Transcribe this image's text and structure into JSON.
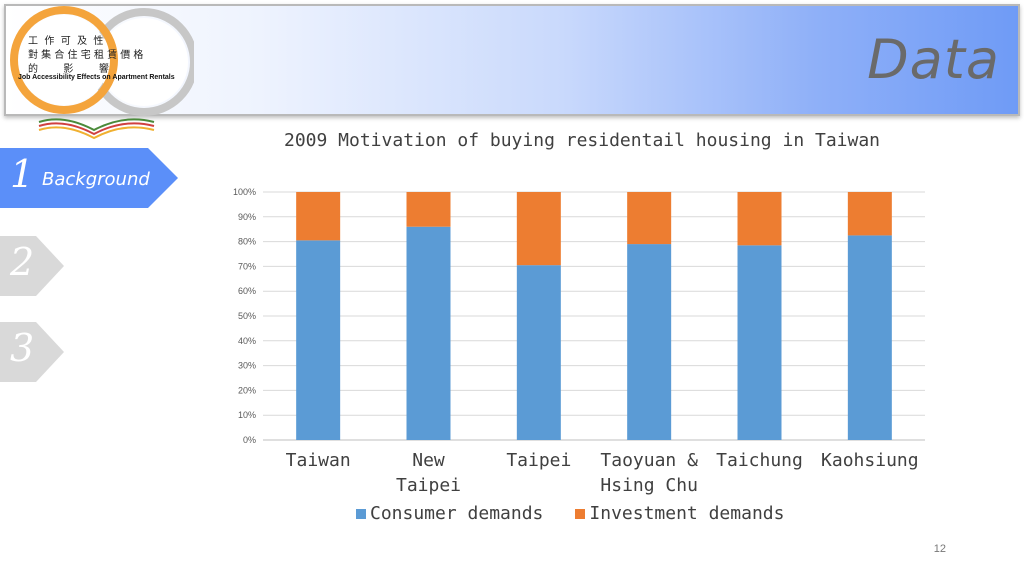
{
  "header": {
    "title": "Data"
  },
  "logo": {
    "row1": "工  作  可  及  性",
    "row2": "對 集 合 住 宅 租 賃 價 格",
    "row3": "的        影        響",
    "caption": "Job Accessibility Effects on Apartment Rentals"
  },
  "nav": [
    {
      "number": "1",
      "label": "Background",
      "active": true
    },
    {
      "number": "2",
      "label": "",
      "active": false
    },
    {
      "number": "3",
      "label": "",
      "active": false
    }
  ],
  "colors": {
    "consumer": "#5b9bd5",
    "investment": "#ed7d31",
    "nav_active": "#5b8ff9",
    "nav_inactive": "#d9d9d9"
  },
  "chart_data": {
    "type": "bar",
    "stacked": true,
    "title": "2009 Motivation of buying residentail housing in Taiwan",
    "categories": [
      "Taiwan",
      "New Taipei",
      "Taipei",
      "Taoyuan & Hsing Chu",
      "Taichung",
      "Kaohsiung"
    ],
    "series": [
      {
        "name": "Consumer demands",
        "values": [
          80.5,
          86,
          70.5,
          79,
          78.5,
          82.5
        ]
      },
      {
        "name": "Investment demands",
        "values": [
          19.5,
          14,
          29.5,
          21,
          21.5,
          17.5
        ]
      }
    ],
    "yticks": [
      "0%",
      "10%",
      "20%",
      "30%",
      "40%",
      "50%",
      "60%",
      "70%",
      "80%",
      "90%",
      "100%"
    ],
    "ylim": [
      0,
      100
    ],
    "grid": true,
    "legend_position": "bottom"
  },
  "page_number": "12"
}
